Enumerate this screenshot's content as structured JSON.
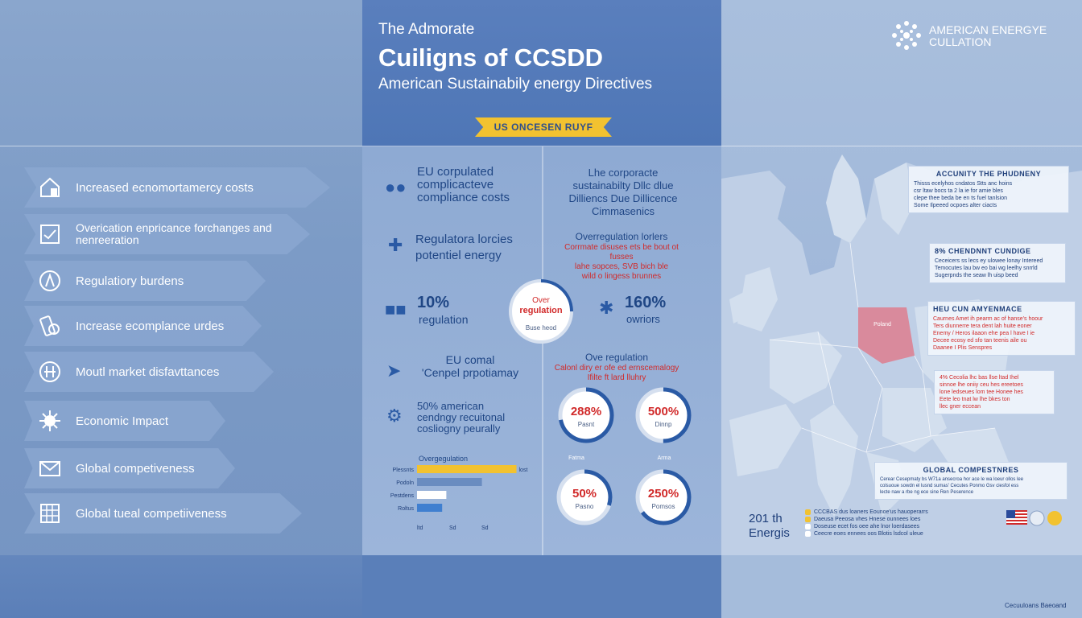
{
  "header": {
    "pre_title": "The Admorate",
    "title": "Cuiligns of CCSDD",
    "subtitle": "American Sustainabily energy Directives",
    "ribbon": "US ONCESEN RUYF",
    "logo_line1": "AMERICAN ENERGYE",
    "logo_line2": "CULLATION"
  },
  "left_items": [
    {
      "label": "Increased ecnomortamercy costs",
      "icon": "building-icon"
    },
    {
      "label": "Overication enpricance forchanges and\nnenreeration",
      "icon": "clipboard-icon"
    },
    {
      "label": "Regulatiory burdens",
      "icon": "compass-icon"
    },
    {
      "label": "Increase ecomplance urdes",
      "icon": "money-icon"
    },
    {
      "label": "Moutl market disfavttances",
      "icon": "scale-icon"
    },
    {
      "label": "Economic Impact",
      "icon": "gear-burst-icon"
    },
    {
      "label": "Global competiveness",
      "icon": "envelope-icon"
    },
    {
      "label": "Global tueal competiiveness",
      "icon": "grid-icon"
    }
  ],
  "middle": {
    "eu_costs": "EU corpulated\ncomplicacteve\ncompliance costs",
    "directive": "Lhe corporacte\nsustainabilty Dllc dlue\nDilliencs Due Dillicence\nCimmasenics",
    "regulatory": "Regulatora lorcies\npotentiel energy",
    "over_reg_title": "Overregulation lorlers",
    "over_reg_body": "Corrmate disuses ets be bout ot fusses\nlahe sopces, SVB bich ble\nwild o lingess brunnes",
    "stat_left_value": "10%",
    "stat_left_label": "regulation",
    "center_ring_top": "Over",
    "center_ring_main": "regulation",
    "center_ring_sub": "Buse heod",
    "stat_right_value": "160%",
    "stat_right_label": "owriors",
    "eu_comal": "EU comal\n'Cenpel prpotiamay",
    "over_reg_2_title": "Ove regulation",
    "over_reg_2_body": "Calonl diry er ofe ed ernscemalogy\nIfilte ft lard lluhry",
    "american": "50% american\ncendngy recuitonal\ncosliogny peurally",
    "bar_chart_title": "Overgegulation",
    "rings": [
      {
        "value": "288%",
        "sub": "Pasnt",
        "fill": 0.72
      },
      {
        "value": "500%",
        "sub": "Dinnp",
        "fill": 0.5
      },
      {
        "value": "50%",
        "sub": "Pasno",
        "fill": 0.3
      },
      {
        "value": "250%",
        "sub": "Pomsos",
        "fill": 0.65
      }
    ],
    "ring_captions": [
      "Fatma",
      "Arma"
    ]
  },
  "chart_data": {
    "type": "bar",
    "title": "Overgegulation",
    "categories": [
      "Plessnts",
      "Podoln",
      "Pestdens",
      "Roltus"
    ],
    "values": [
      0.95,
      0.62,
      0.28,
      0.24
    ],
    "value_label": "lost",
    "ticks": [
      "ltd",
      "Sd",
      "Sd"
    ],
    "colors": [
      "#f2c230",
      "#6a8cc0",
      "#ffffff",
      "#3f7fd0"
    ]
  },
  "map": {
    "note1_title": "ACCUNITY THE PHUDNENY",
    "note1_body": "Thisss ecelyhos cndatos Stts anc hoins\ncsr ltaw bocs ta 2 la ie for amie bles\nclepe thee beda be en ts fuel tanlsion\nSome Ilpeeed ocpoes alter ciacts",
    "note2_title": "8%  CHENDNNT CUNDIGE",
    "note2_body": "Ceceicers ss lecs ey ulowee lonay Intereed\nTemocutes lau bw eo bai wg leelhy snrrld\nSugerpnds the seaw lh uisp beed",
    "note3_title": "HEU  CUN AMYENMACE",
    "note3_body": "Caurnes Amet ih pearm ac of hanse's hoour\nTers diunnerre tera dent lah huite eoner\nEnemy / Heros ilaaon ehe pea l have I ie\nDecee ecosy ed sfo tan teenis aile ou\nDaanee I Plis Senspres",
    "note4_body": "4%  Cecolia lhc bas llse ltad Ihel\nsinnoe lhe oniiy ceu hes ereetoes\nlone ledseues lom tee Honee hes\nEete leo tnat lw lhe bkes ton\nllec gner eccean",
    "note5_title": "GLOBAL COMPESTNRES",
    "note5_body": "Cerear Cesepmaty bs W71a ansecroa hor ace le wa loeur ollos lee\ncolsuoue sowdn el lusnd sumas' Cecutes Ponmo Gsv ciesfol ess\nlecte naw a rbe ng ece sine Ren Peserence",
    "poland_label": "Poland",
    "year_line1": "201 th",
    "year_line2": "Energis",
    "legend": [
      "CCCBAS dus loaners Eounoe'us hauoperarrs",
      "Daeusa  Peeosa vhes Hnese ounnees loes",
      "Doseuse ecet fos oee ahe lnor loerdasees",
      "Ceecre eoes ennees oos Blotis lsdcol uleue"
    ]
  },
  "footer": {
    "text": "Cecuuloans Baeoand"
  },
  "colors": {
    "accent": "#f2c230",
    "red": "#d12a2a",
    "navy": "#1f3f7a"
  }
}
